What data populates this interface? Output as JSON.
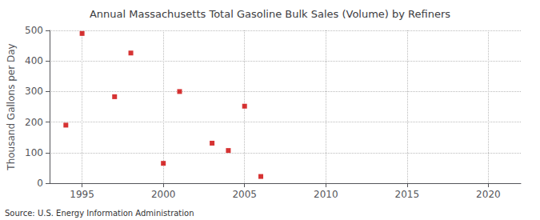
{
  "chart_data": {
    "type": "scatter",
    "title": "Annual Massachusetts Total Gasoline Bulk Sales (Volume) by Refiners",
    "ylabel": "Thousand Gallons per Day",
    "annotation": "Source: U.S. Energy Information Administration",
    "x": [
      1994,
      1995,
      1997,
      1998,
      2000,
      2001,
      2003,
      2004,
      2005,
      2006
    ],
    "values": [
      190,
      490,
      283,
      426,
      65,
      300,
      131,
      107,
      252,
      22
    ],
    "color": "#cc0000",
    "marker": "square",
    "xlim": [
      1993,
      2022
    ],
    "ylim": [
      0,
      500
    ],
    "xticks": [
      1995,
      2000,
      2005,
      2010,
      2015,
      2020
    ],
    "yticks": [
      0,
      100,
      200,
      300,
      400,
      500
    ],
    "grid": true
  }
}
